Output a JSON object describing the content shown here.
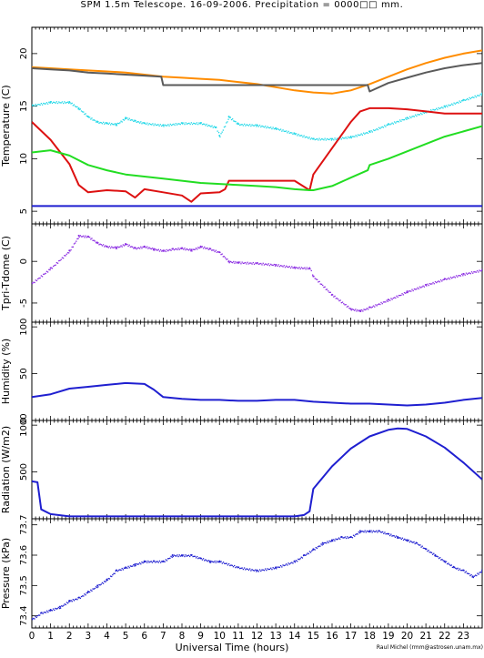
{
  "header": {
    "title": "SPM 1.5m Telescope. 16-09-2006. Precipitation = 0000□□ mm."
  },
  "footer": {
    "xlabel": "Universal Time (hours)",
    "credit": "Raul Michel (rmm@astrosen.unam.mx)"
  },
  "x_ticks": [
    "0",
    "1",
    "2",
    "3",
    "4",
    "5",
    "6",
    "7",
    "8",
    "9",
    "10",
    "11",
    "12",
    "13",
    "14",
    "15",
    "16",
    "17",
    "18",
    "19",
    "20",
    "21",
    "22",
    "23"
  ],
  "chart_data": [
    {
      "type": "line",
      "ylabel": "Temperature (C)",
      "xlim": [
        0,
        24
      ],
      "ylim": [
        3.8,
        22.5
      ],
      "yticks": [
        5,
        10,
        15,
        20
      ],
      "grid": false,
      "series": [
        {
          "color": "#ff8c00",
          "style": "line",
          "x": [
            0,
            1,
            2,
            3,
            4,
            5,
            6,
            7,
            8,
            9,
            10,
            11,
            12,
            13,
            14,
            15,
            16,
            17,
            18,
            19,
            20,
            21,
            22,
            23,
            24
          ],
          "y": [
            18.7,
            18.6,
            18.5,
            18.4,
            18.3,
            18.2,
            18.0,
            17.8,
            17.7,
            17.6,
            17.5,
            17.3,
            17.1,
            16.8,
            16.5,
            16.3,
            16.2,
            16.5,
            17.1,
            17.8,
            18.5,
            19.1,
            19.6,
            20.0,
            20.3
          ]
        },
        {
          "color": "#5a5a5a",
          "style": "line",
          "x": [
            0,
            1,
            2,
            3,
            4,
            5,
            6,
            6.9,
            7.0,
            8,
            10,
            12,
            14,
            16,
            17.9,
            18.0,
            19,
            20,
            21,
            22,
            23,
            24
          ],
          "y": [
            18.6,
            18.5,
            18.4,
            18.2,
            18.1,
            18.0,
            17.9,
            17.8,
            17.0,
            17.0,
            17.0,
            17.0,
            17.0,
            17.0,
            17.0,
            16.4,
            17.2,
            17.7,
            18.2,
            18.6,
            18.9,
            19.1
          ]
        },
        {
          "color": "#22d8e8",
          "style": "scatter",
          "x": [
            0,
            1,
            2,
            2.5,
            3,
            3.5,
            4,
            4.5,
            5,
            5.5,
            6,
            7,
            8,
            9,
            9.8,
            10,
            10.5,
            11,
            12,
            13,
            14,
            15,
            16,
            17,
            18,
            19,
            20,
            21,
            22,
            23,
            24
          ],
          "y": [
            15.1,
            15.4,
            15.4,
            14.8,
            14.0,
            13.5,
            13.4,
            13.3,
            13.9,
            13.6,
            13.4,
            13.2,
            13.4,
            13.4,
            13.0,
            12.2,
            14.0,
            13.3,
            13.2,
            12.9,
            12.4,
            11.9,
            11.9,
            12.1,
            12.6,
            13.3,
            13.9,
            14.5,
            15.0,
            15.6,
            16.2
          ]
        },
        {
          "color": "#dd1111",
          "style": "line",
          "x": [
            0,
            1,
            2,
            2.5,
            3,
            4,
            5,
            5.5,
            6,
            7,
            8,
            8.5,
            9,
            10,
            10.3,
            10.5,
            12,
            14,
            14.8,
            15,
            16,
            17,
            17.5,
            18,
            19,
            20,
            21,
            22,
            23,
            24
          ],
          "y": [
            13.5,
            11.8,
            9.5,
            7.5,
            6.8,
            7.0,
            6.9,
            6.3,
            7.1,
            6.8,
            6.5,
            5.9,
            6.7,
            6.8,
            7.1,
            7.9,
            7.9,
            7.9,
            7.0,
            8.5,
            11.0,
            13.5,
            14.5,
            14.8,
            14.8,
            14.7,
            14.5,
            14.3,
            14.3,
            14.3
          ]
        },
        {
          "color": "#22dd22",
          "style": "line",
          "x": [
            0,
            1,
            2,
            3,
            4,
            5,
            6,
            7,
            8,
            9,
            10,
            11,
            12,
            13,
            14,
            14.8,
            15,
            16,
            17,
            17.9,
            18,
            19,
            20,
            21,
            22,
            23,
            24
          ],
          "y": [
            10.6,
            10.8,
            10.3,
            9.4,
            8.9,
            8.5,
            8.3,
            8.1,
            7.9,
            7.7,
            7.6,
            7.5,
            7.4,
            7.3,
            7.1,
            7.0,
            7.0,
            7.4,
            8.2,
            8.9,
            9.4,
            10.0,
            10.7,
            11.4,
            12.1,
            12.6,
            13.1
          ]
        },
        {
          "color": "#1f1fd0",
          "style": "line",
          "x": [
            0,
            24
          ],
          "y": [
            5.5,
            5.5
          ]
        }
      ]
    },
    {
      "type": "scatter",
      "ylabel": "Tpri-Tdome (C)",
      "xlim": [
        0,
        24
      ],
      "ylim": [
        -7.3,
        4.5
      ],
      "yticks": [
        -5,
        0
      ],
      "grid": false,
      "series": [
        {
          "color": "#8a2be2",
          "x": [
            0,
            1,
            2,
            2.5,
            3,
            3.5,
            4,
            4.5,
            5,
            5.5,
            6,
            6.5,
            7,
            7.5,
            8,
            8.5,
            9,
            9.5,
            10,
            10.5,
            11,
            12,
            13,
            14,
            14.8,
            15,
            16,
            17,
            17.5,
            18,
            19,
            20,
            21,
            22,
            23,
            24
          ],
          "y": [
            -2.6,
            -0.8,
            1.3,
            3.1,
            3.0,
            2.2,
            1.8,
            1.7,
            2.1,
            1.6,
            1.8,
            1.5,
            1.3,
            1.5,
            1.6,
            1.4,
            1.8,
            1.5,
            1.1,
            0.0,
            -0.1,
            -0.2,
            -0.4,
            -0.7,
            -0.8,
            -1.8,
            -4.0,
            -5.7,
            -5.9,
            -5.5,
            -4.6,
            -3.6,
            -2.8,
            -2.1,
            -1.5,
            -1.0
          ]
        }
      ]
    },
    {
      "type": "line",
      "ylabel": "Humidity (%)",
      "xlim": [
        0,
        24
      ],
      "ylim": [
        0,
        105
      ],
      "yticks": [
        0,
        50,
        100
      ],
      "grid": false,
      "series": [
        {
          "color": "#1f1fd0",
          "x": [
            0,
            1,
            2,
            3,
            4,
            5,
            6,
            6.5,
            7,
            8,
            9,
            10,
            11,
            12,
            13,
            14,
            15,
            16,
            17,
            18,
            19,
            20,
            21,
            22,
            23,
            24
          ],
          "y": [
            25,
            28,
            34,
            36,
            38,
            40,
            39,
            33,
            25,
            23,
            22,
            22,
            21,
            21,
            22,
            22,
            20,
            19,
            18,
            18,
            17,
            16,
            17,
            19,
            22,
            24
          ]
        }
      ]
    },
    {
      "type": "line",
      "ylabel": "Radiation (W/m2)",
      "xlim": [
        0,
        24
      ],
      "ylim": [
        0,
        1050
      ],
      "yticks": [
        500,
        1000
      ],
      "grid": false,
      "series": [
        {
          "color": "#1f1fd0",
          "x": [
            0,
            0.3,
            0.5,
            1,
            2,
            4,
            6,
            8,
            10,
            12,
            14,
            14.5,
            14.8,
            15,
            16,
            17,
            18,
            19,
            19.5,
            20,
            21,
            22,
            23,
            24
          ],
          "y": [
            400,
            390,
            100,
            50,
            25,
            25,
            25,
            25,
            25,
            25,
            25,
            40,
            80,
            320,
            560,
            750,
            880,
            950,
            965,
            960,
            880,
            760,
            600,
            420
          ]
        }
      ]
    },
    {
      "type": "scatter",
      "ylabel": "Pressure (kPa)",
      "xlim": [
        0,
        24
      ],
      "ylim": [
        73.36,
        73.72
      ],
      "yticks": [
        73.4,
        73.5,
        73.6,
        73.7
      ],
      "grid": false,
      "series": [
        {
          "color": "#1f1fd0",
          "x": [
            0,
            0.5,
            1,
            1.5,
            2,
            2.5,
            3,
            3.5,
            4,
            4.5,
            5,
            5.5,
            6,
            6.5,
            7,
            7.5,
            8,
            8.5,
            9,
            9.5,
            10,
            11,
            12,
            13,
            14,
            14.5,
            15,
            15.5,
            16,
            16.5,
            17,
            17.5,
            18,
            18.5,
            19,
            19.5,
            20,
            20.5,
            21,
            21.5,
            22,
            22.5,
            23,
            23.5,
            24
          ],
          "y": [
            73.39,
            73.41,
            73.42,
            73.43,
            73.45,
            73.46,
            73.48,
            73.5,
            73.52,
            73.55,
            73.56,
            73.57,
            73.58,
            73.58,
            73.58,
            73.6,
            73.6,
            73.6,
            73.59,
            73.58,
            73.58,
            73.56,
            73.55,
            73.56,
            73.58,
            73.6,
            73.62,
            73.64,
            73.65,
            73.66,
            73.66,
            73.68,
            73.68,
            73.68,
            73.67,
            73.66,
            73.65,
            73.64,
            73.62,
            73.6,
            73.58,
            73.56,
            73.55,
            73.53,
            73.55
          ]
        }
      ]
    }
  ]
}
